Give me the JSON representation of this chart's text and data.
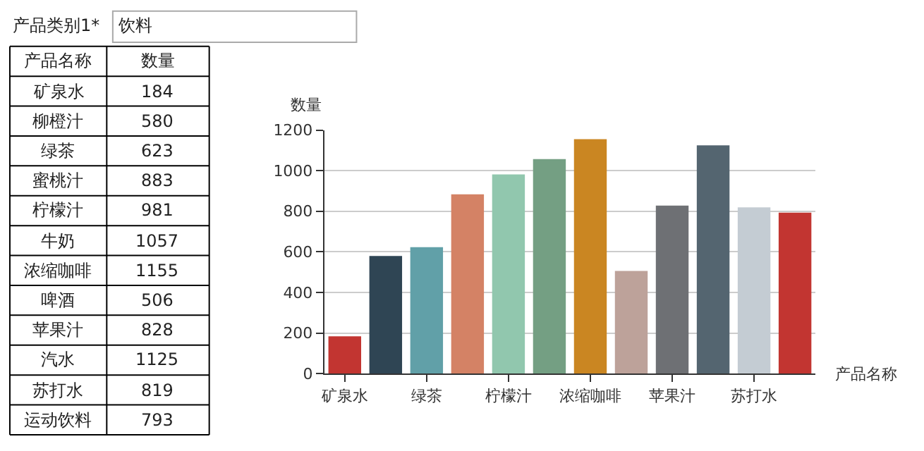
{
  "chart_data": [
    {
      "type": "other",
      "annotations": [
        "产品类别1*",
        "饮料"
      ],
      "xlabel": "产品名称",
      "ylabel": "数量",
      "categories": [
        "矿泉水",
        "柳橙汁",
        "绿茶",
        "蜜桃汁",
        "柠檬汁",
        "牛奶",
        "浓缩咖啡",
        "啤酒",
        "苹果汁",
        "汽水",
        "苏打水",
        "运动饮料"
      ],
      "values": [
        184,
        580,
        623,
        883,
        981,
        1057,
        1155,
        506,
        828,
        1125,
        819,
        793
      ],
      "value_labels": [
        "184",
        "580",
        "623",
        "883",
        "981",
        "1057",
        "1155",
        "506",
        "828",
        "1125",
        "819",
        "793"
      ]
    },
    {
      "type": "bar",
      "xlabel": "产品名称",
      "ylabel": "数量",
      "categories": [
        "矿泉水",
        null,
        "绿茶",
        null,
        "柠檬汁",
        null,
        "浓缩咖啡",
        null,
        "苹果汁",
        null,
        "苏打水",
        null
      ],
      "values": [
        184,
        580,
        623,
        883,
        981,
        1057,
        1155,
        506,
        828,
        1125,
        819,
        793
      ],
      "colors": [
        "#c23531",
        "#2f4554",
        "#61a0a8",
        "#d48265",
        "#91c7ae",
        "#749f83",
        "#ca8622",
        "#bda29a",
        "#6e7074",
        "#546570",
        "#c4ccd3",
        "#c23531"
      ],
      "ylim": [
        0,
        1200
      ],
      "yticks": [
        0,
        200,
        400,
        600,
        800,
        1000,
        1200
      ],
      "grid": "y"
    }
  ]
}
